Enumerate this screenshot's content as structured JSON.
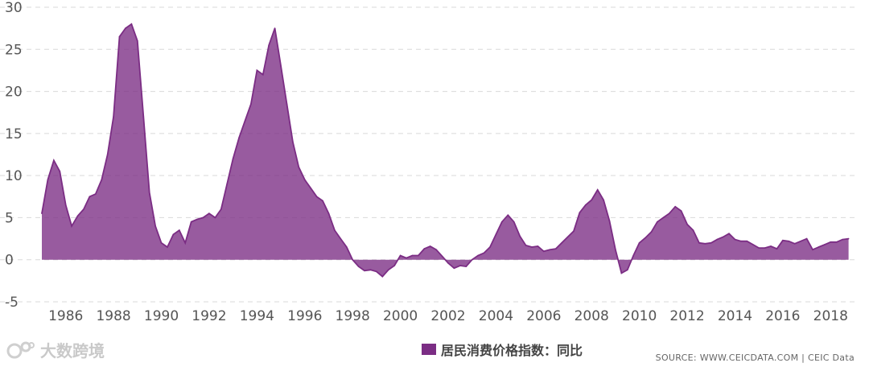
{
  "chart_data": {
    "type": "area",
    "title": "",
    "xlabel": "",
    "ylabel": "",
    "ylim": [
      -5,
      30
    ],
    "xlim": [
      1985.0,
      2019.0
    ],
    "yticks": [
      "-5",
      "0",
      "5",
      "10",
      "15",
      "20",
      "25",
      "30"
    ],
    "xticks": [
      "1986",
      "1988",
      "1990",
      "1992",
      "1994",
      "1996",
      "1998",
      "2000",
      "2002",
      "2004",
      "2006",
      "2008",
      "2010",
      "2012",
      "2014",
      "2016",
      "2018"
    ],
    "grid": true,
    "legend_position": "bottom",
    "series": [
      {
        "name": "居民消费价格指数：同比",
        "color": "#7b2d84",
        "x": [
          1985.0,
          1985.25,
          1985.5,
          1985.75,
          1986.0,
          1986.25,
          1986.5,
          1986.75,
          1987.0,
          1987.25,
          1987.5,
          1987.75,
          1988.0,
          1988.25,
          1988.5,
          1988.75,
          1989.0,
          1989.25,
          1989.5,
          1989.75,
          1990.0,
          1990.25,
          1990.5,
          1990.75,
          1991.0,
          1991.25,
          1991.5,
          1991.75,
          1992.0,
          1992.25,
          1992.5,
          1992.75,
          1993.0,
          1993.25,
          1993.5,
          1993.75,
          1994.0,
          1994.25,
          1994.5,
          1994.75,
          1995.0,
          1995.25,
          1995.5,
          1995.75,
          1996.0,
          1996.25,
          1996.5,
          1996.75,
          1997.0,
          1997.25,
          1997.5,
          1997.75,
          1998.0,
          1998.25,
          1998.5,
          1998.75,
          1999.0,
          1999.25,
          1999.5,
          1999.75,
          2000.0,
          2000.25,
          2000.5,
          2000.75,
          2001.0,
          2001.25,
          2001.5,
          2001.75,
          2002.0,
          2002.25,
          2002.5,
          2002.75,
          2003.0,
          2003.25,
          2003.5,
          2003.75,
          2004.0,
          2004.25,
          2004.5,
          2004.75,
          2005.0,
          2005.25,
          2005.5,
          2005.75,
          2006.0,
          2006.25,
          2006.5,
          2006.75,
          2007.0,
          2007.25,
          2007.5,
          2007.75,
          2008.0,
          2008.25,
          2008.5,
          2008.75,
          2009.0,
          2009.25,
          2009.5,
          2009.75,
          2010.0,
          2010.25,
          2010.5,
          2010.75,
          2011.0,
          2011.25,
          2011.5,
          2011.75,
          2012.0,
          2012.25,
          2012.5,
          2012.75,
          2013.0,
          2013.25,
          2013.5,
          2013.75,
          2014.0,
          2014.25,
          2014.5,
          2014.75,
          2015.0,
          2015.25,
          2015.5,
          2015.75,
          2016.0,
          2016.25,
          2016.5,
          2016.75,
          2017.0,
          2017.25,
          2017.5,
          2017.75,
          2018.0,
          2018.25,
          2018.5,
          2018.75
        ],
        "values": [
          5.5,
          9.5,
          11.8,
          10.5,
          6.5,
          4.0,
          5.2,
          6.0,
          7.5,
          7.8,
          9.5,
          12.5,
          17.0,
          26.5,
          27.5,
          28.0,
          26.0,
          17.0,
          8.0,
          4.0,
          2.0,
          1.5,
          3.0,
          3.5,
          2.0,
          4.5,
          4.8,
          5.0,
          5.5,
          5.0,
          6.0,
          9.0,
          12.0,
          14.5,
          16.5,
          18.5,
          22.5,
          22.0,
          25.5,
          27.5,
          23.0,
          18.5,
          14.0,
          11.0,
          9.5,
          8.5,
          7.5,
          7.0,
          5.5,
          3.5,
          2.5,
          1.5,
          0.0,
          -0.8,
          -1.3,
          -1.2,
          -1.4,
          -2.0,
          -1.2,
          -0.7,
          0.5,
          0.2,
          0.5,
          0.5,
          1.3,
          1.6,
          1.2,
          0.4,
          -0.4,
          -1.0,
          -0.7,
          -0.8,
          0.0,
          0.5,
          0.8,
          1.5,
          3.0,
          4.5,
          5.3,
          4.5,
          2.8,
          1.7,
          1.5,
          1.6,
          1.0,
          1.2,
          1.3,
          2.0,
          2.7,
          3.4,
          5.6,
          6.5,
          7.1,
          8.3,
          7.1,
          4.6,
          1.2,
          -1.6,
          -1.2,
          0.5,
          2.0,
          2.6,
          3.3,
          4.5,
          5.0,
          5.5,
          6.3,
          5.8,
          4.2,
          3.5,
          2.0,
          1.9,
          2.0,
          2.4,
          2.7,
          3.1,
          2.4,
          2.2,
          2.2,
          1.8,
          1.4,
          1.4,
          1.6,
          1.3,
          2.3,
          2.2,
          1.9,
          2.2,
          2.5,
          1.2,
          1.5,
          1.8,
          2.1,
          2.1,
          2.4,
          2.5
        ]
      }
    ]
  },
  "legend": {
    "label": "居民消费价格指数：同比"
  },
  "source": "SOURCE: WWW.CEICDATA.COM | CEIC Data",
  "watermark": "大数跨境"
}
